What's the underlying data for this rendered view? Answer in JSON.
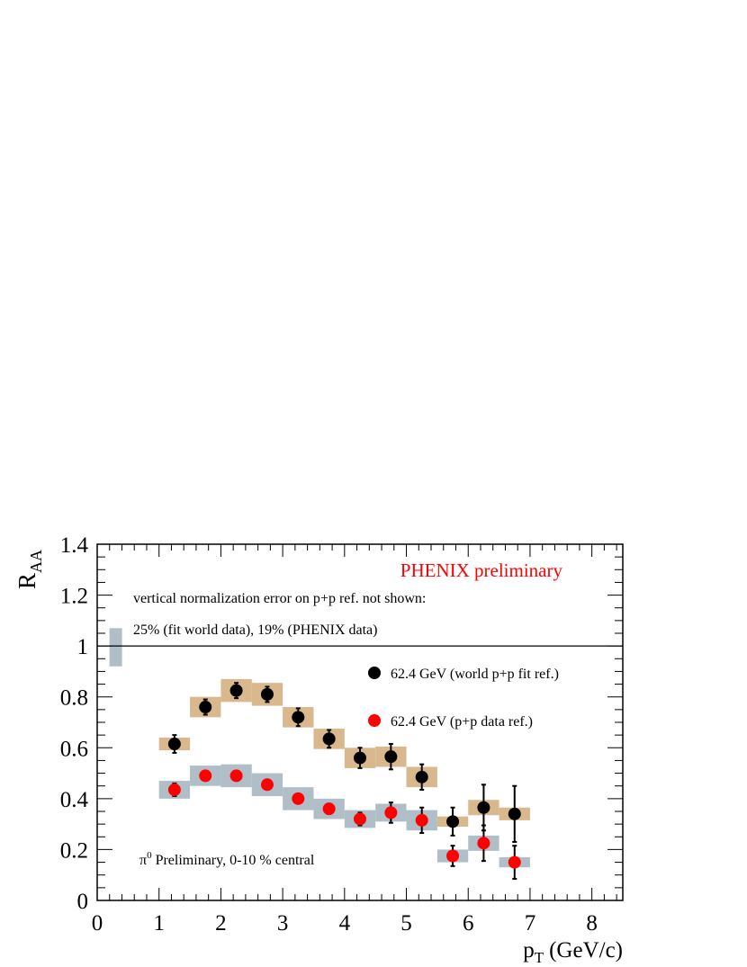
{
  "chart_data": {
    "type": "scatter",
    "title": "PHENIX preliminary",
    "xlabel": "p",
    "xlabel_sub": "T",
    "xlabel_unit": "(GeV/c)",
    "ylabel": "R",
    "ylabel_sub": "AA",
    "xlim": [
      0,
      8.5
    ],
    "ylim": [
      0,
      1.4
    ],
    "x_ticks": [
      0,
      1,
      2,
      3,
      4,
      5,
      6,
      7,
      8
    ],
    "y_ticks": [
      0,
      0.2,
      0.4,
      0.6,
      0.8,
      1,
      1.2,
      1.4
    ],
    "x_tick_labels": [
      "0",
      "1",
      "2",
      "3",
      "4",
      "5",
      "6",
      "7",
      "8"
    ],
    "y_tick_labels": [
      "0",
      "0.2",
      "0.4",
      "0.6",
      "0.8",
      "1",
      "1.2",
      "1.4"
    ],
    "reference_line": 1,
    "normalization_box": {
      "x": 0.3,
      "y_low": 0.92,
      "y_high": 1.07,
      "color": "#b0bec8"
    },
    "annotations": {
      "note_line1": "vertical normalization error on p+p ref. not shown:",
      "note_line2": "25% (fit world data), 19% (PHENIX data)",
      "centrality_symbol": "π",
      "centrality_sup": "0",
      "centrality_text": " Preliminary, 0-10 % central"
    },
    "series": [
      {
        "name": "62.4 GeV (world p+p fit ref.)",
        "color": "#000000",
        "sys_color": "#d8b88c",
        "x": [
          1.25,
          1.75,
          2.25,
          2.75,
          3.25,
          3.75,
          4.25,
          4.75,
          5.25,
          5.75,
          6.25,
          6.75
        ],
        "y": [
          0.615,
          0.76,
          0.825,
          0.81,
          0.72,
          0.635,
          0.56,
          0.565,
          0.485,
          0.31,
          0.365,
          0.34
        ],
        "stat_err": [
          0.035,
          0.03,
          0.03,
          0.03,
          0.035,
          0.035,
          0.04,
          0.05,
          0.05,
          0.055,
          0.09,
          0.11
        ],
        "sys_err": [
          0.025,
          0.04,
          0.045,
          0.045,
          0.04,
          0.04,
          0.04,
          0.04,
          0.04,
          0.02,
          0.03,
          0.025
        ]
      },
      {
        "name": "62.4 GeV (p+p data ref.)",
        "color": "#ff0000",
        "sys_color": "#b0bec8",
        "x": [
          1.25,
          1.75,
          2.25,
          2.75,
          3.25,
          3.75,
          4.25,
          4.75,
          5.25,
          5.75,
          6.25,
          6.75
        ],
        "y": [
          0.435,
          0.49,
          0.49,
          0.455,
          0.4,
          0.36,
          0.32,
          0.345,
          0.315,
          0.175,
          0.225,
          0.15
        ],
        "stat_err": [
          0.025,
          0.015,
          0.015,
          0.015,
          0.015,
          0.02,
          0.025,
          0.04,
          0.05,
          0.04,
          0.07,
          0.065
        ],
        "sys_err": [
          0.035,
          0.04,
          0.045,
          0.045,
          0.045,
          0.04,
          0.035,
          0.035,
          0.04,
          0.025,
          0.03,
          0.02
        ]
      }
    ],
    "legend_position": "right"
  }
}
